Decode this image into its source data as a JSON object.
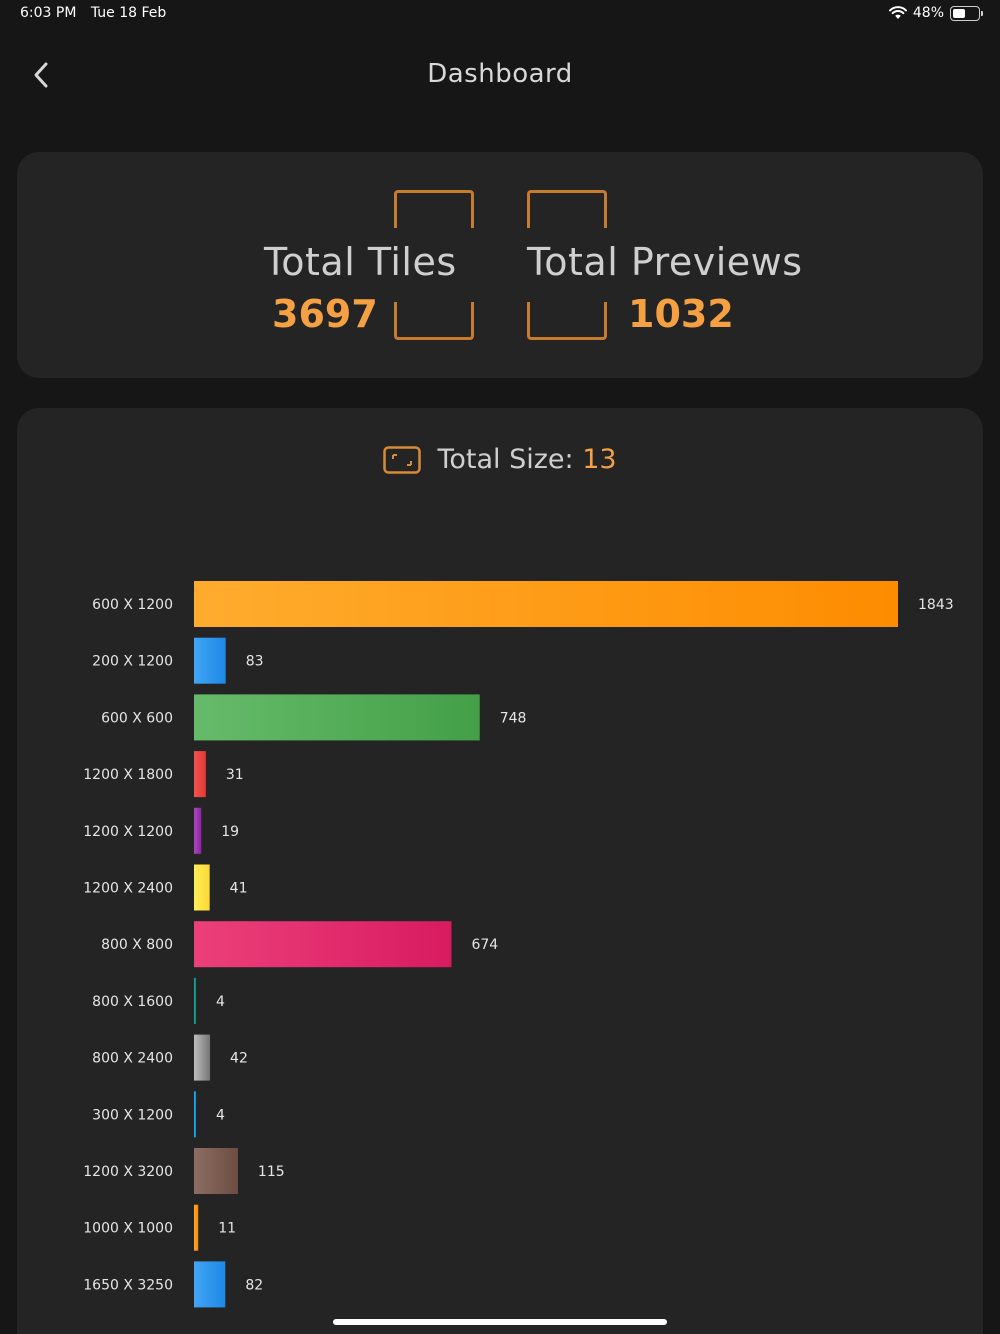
{
  "status_bar": {
    "time": "6:03 PM",
    "date": "Tue 18 Feb",
    "battery": "48%",
    "battery_level": 0.48
  },
  "nav": {
    "title": "Dashboard",
    "back_icon": "chevron-left-icon"
  },
  "summary": {
    "tiles_label": "Total Tiles",
    "tiles_value": "3697",
    "previews_label": "Total Previews",
    "previews_value": "1032",
    "accent": "#f5a043"
  },
  "size": {
    "label": "Total Size:",
    "value": "13",
    "icon": "image-frame-icon"
  },
  "chart_data": {
    "type": "bar",
    "orientation": "horizontal",
    "categories": [
      "600 X 1200",
      "200 X 1200",
      "600 X 600",
      "1200 X 1800",
      "1200 X 1200",
      "1200 X 2400",
      "800 X 800",
      "800 X 1600",
      "800 X 2400",
      "300 X 1200",
      "1200 X 3200",
      "1000 X 1000",
      "1650 X 3250"
    ],
    "values": [
      1843,
      83,
      748,
      31,
      19,
      41,
      674,
      4,
      42,
      4,
      115,
      11,
      82
    ],
    "colors": [
      [
        "#ffac2e",
        "#fd8c00"
      ],
      [
        "#42a5f5",
        "#1e88e5"
      ],
      [
        "#66bb6a",
        "#43a047"
      ],
      [
        "#ef5350",
        "#e53935"
      ],
      [
        "#ab47bc",
        "#8e24aa"
      ],
      [
        "#ffee58",
        "#fdd835"
      ],
      [
        "#ec407a",
        "#d81b60"
      ],
      [
        "#26a69a",
        "#00897b"
      ],
      [
        "#bdbdbd",
        "#757575"
      ],
      [
        "#29b6f6",
        "#0288d1"
      ],
      [
        "#8d6e63",
        "#6d4c41"
      ],
      [
        "#ffa726",
        "#fb8c00"
      ],
      [
        "#42a5f5",
        "#1e88e5"
      ]
    ],
    "xlim": [
      0,
      1843
    ],
    "grid": false,
    "title": "",
    "xlabel": "",
    "ylabel": ""
  }
}
